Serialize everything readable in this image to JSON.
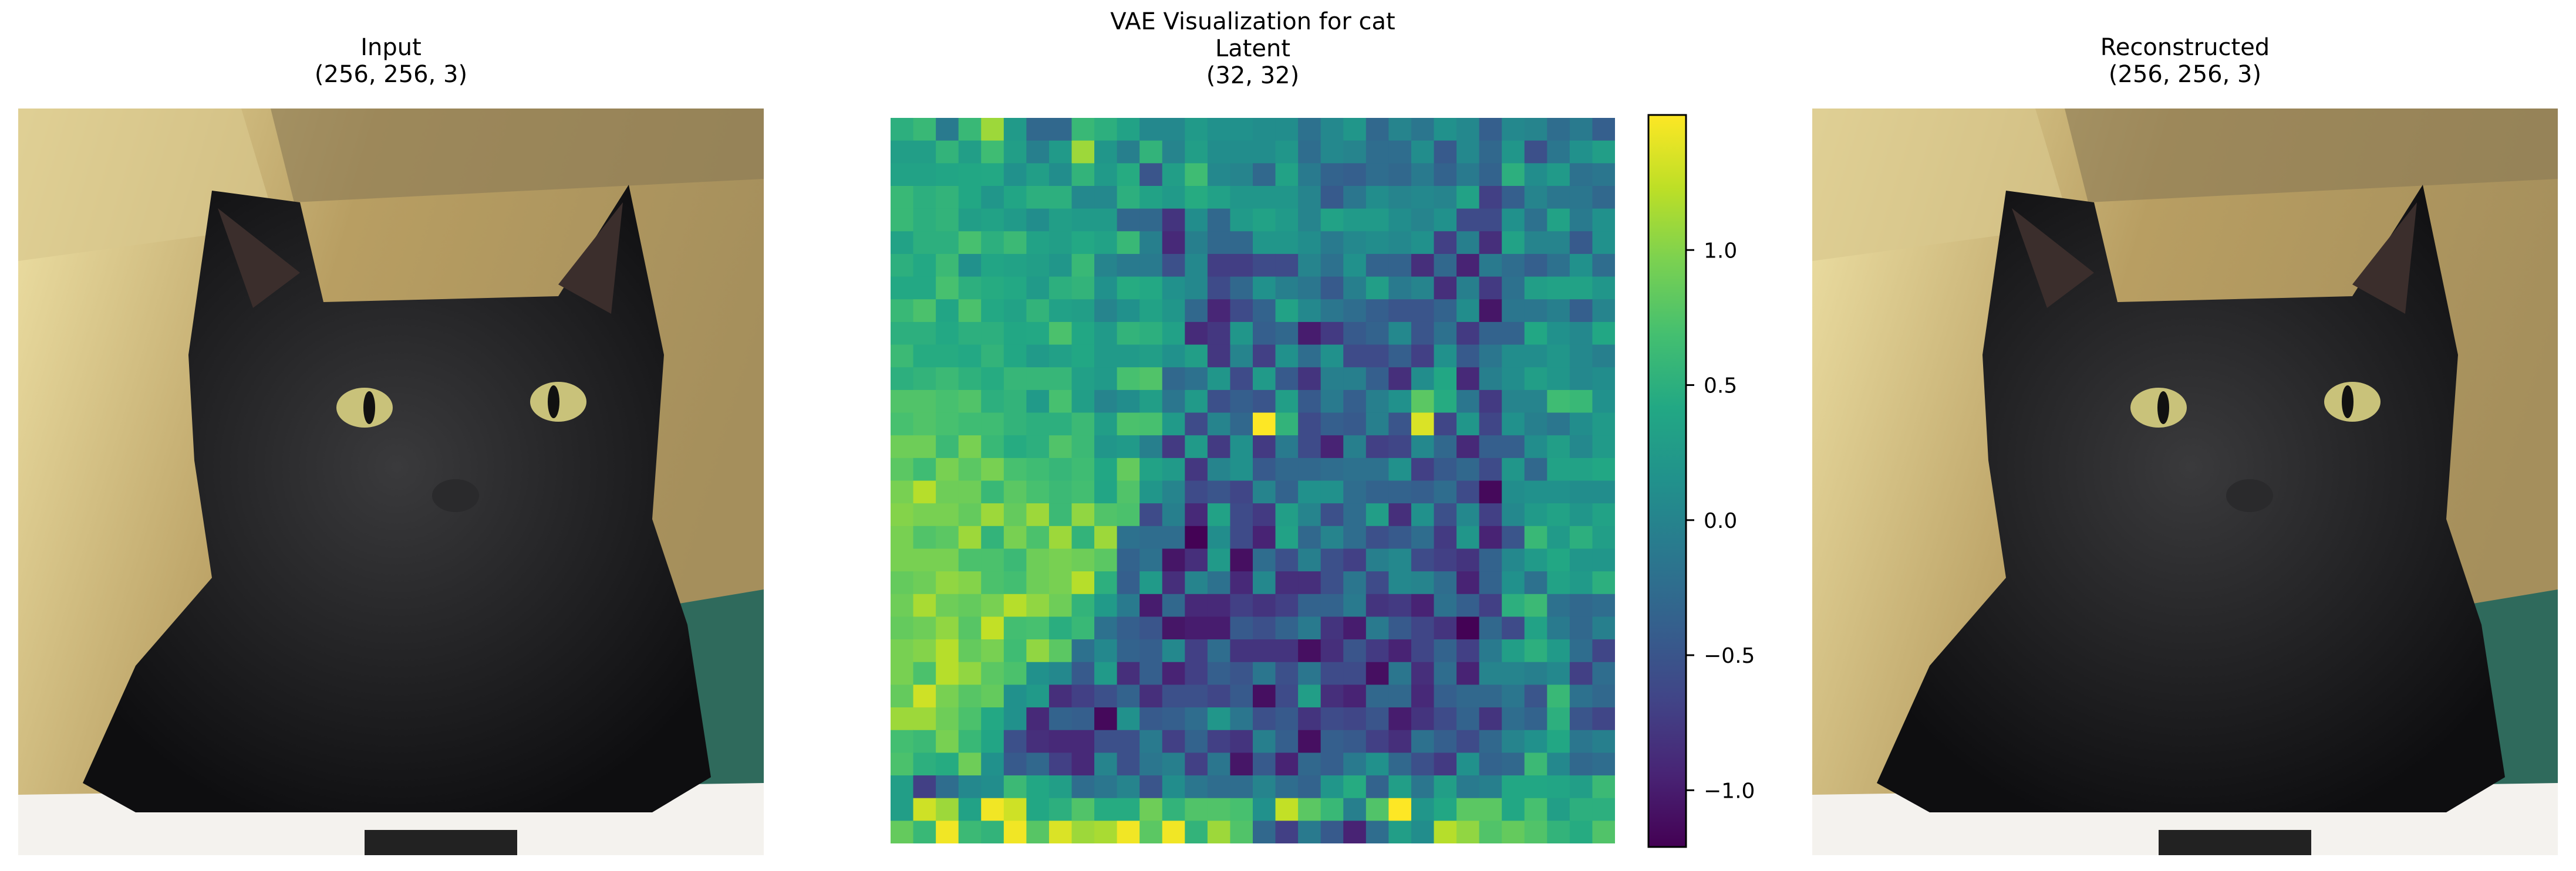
{
  "panels": {
    "input": {
      "title": "Input",
      "shape": "(256, 256, 3)"
    },
    "latent": {
      "suptitle": "VAE Visualization for cat",
      "title": "Latent",
      "shape": "(32, 32)"
    },
    "reconstructed": {
      "title": "Reconstructed",
      "shape": "(256, 256, 3)"
    }
  },
  "chart_data": {
    "type": "heatmap",
    "title": "Latent",
    "colormap": "viridis",
    "vmin": -1.21,
    "vmax": 1.5,
    "colorbar_ticks": [
      -1.0,
      -0.5,
      0.0,
      0.5,
      1.0
    ],
    "colorbar_tick_labels": [
      "−1.0",
      "−0.5",
      "0.0",
      "0.5",
      "1.0"
    ],
    "axes_visible": false,
    "values": [
      [
        0.5,
        0.6,
        -0.1,
        0.6,
        1.1,
        0.25,
        -0.3,
        -0.3,
        0.6,
        0.5,
        0.35,
        0.05,
        0.05,
        0.25,
        0.15,
        0.15,
        0.1,
        0.1,
        -0.2,
        0.05,
        0.2,
        -0.3,
        0.0,
        -0.15,
        0.15,
        0.05,
        -0.4,
        0.05,
        0.0,
        -0.25,
        -0.1,
        -0.4
      ],
      [
        0.3,
        0.3,
        0.55,
        0.3,
        0.65,
        0.3,
        -0.05,
        0.25,
        1.1,
        0.2,
        -0.05,
        0.55,
        0.0,
        0.3,
        0.1,
        0.1,
        0.1,
        0.2,
        -0.25,
        0.05,
        0.0,
        -0.25,
        -0.25,
        0.1,
        -0.45,
        0.05,
        -0.3,
        0.2,
        -0.55,
        -0.15,
        0.15,
        0.3
      ],
      [
        0.35,
        0.35,
        0.38,
        0.4,
        0.42,
        0.15,
        0.3,
        0.1,
        0.55,
        0.25,
        0.45,
        -0.5,
        0.3,
        0.65,
        0.05,
        0.0,
        -0.3,
        0.35,
        -0.1,
        -0.35,
        -0.4,
        -0.25,
        -0.3,
        -0.1,
        -0.35,
        -0.1,
        -0.35,
        0.5,
        0.1,
        0.25,
        -0.2,
        -0.15
      ],
      [
        0.6,
        0.5,
        0.55,
        0.4,
        0.2,
        0.38,
        0.5,
        0.5,
        0.05,
        0.05,
        0.5,
        0.35,
        0.25,
        0.45,
        0.33,
        0.2,
        0.2,
        0.2,
        0.0,
        -0.45,
        -0.15,
        0.1,
        0.0,
        0.05,
        0.0,
        0.35,
        -0.7,
        -0.4,
        0.0,
        -0.15,
        -0.15,
        -0.3
      ],
      [
        0.6,
        0.5,
        0.55,
        0.3,
        0.35,
        0.25,
        0.1,
        0.3,
        0.25,
        0.25,
        -0.3,
        -0.3,
        -0.8,
        0.1,
        -0.3,
        0.25,
        0.35,
        0.25,
        0.0,
        0.35,
        0.25,
        0.25,
        0.1,
        0.0,
        0.15,
        -0.6,
        -0.6,
        0.15,
        -0.2,
        0.35,
        -0.1,
        0.15
      ],
      [
        0.35,
        0.5,
        0.5,
        0.7,
        0.5,
        0.62,
        0.35,
        0.3,
        0.42,
        0.35,
        0.6,
        -0.05,
        -0.9,
        -0.05,
        -0.3,
        -0.3,
        0.2,
        0.2,
        0.1,
        -0.1,
        0.05,
        0.1,
        0.05,
        0.15,
        -0.7,
        -0.05,
        -0.85,
        0.35,
        0.0,
        0.0,
        -0.45,
        0.15
      ],
      [
        0.5,
        0.42,
        0.62,
        0.15,
        0.38,
        0.35,
        0.3,
        0.2,
        0.6,
        0.0,
        -0.1,
        -0.1,
        -0.55,
        0.05,
        -0.72,
        -0.72,
        -0.6,
        -0.6,
        0.0,
        -0.2,
        0.15,
        -0.35,
        -0.35,
        -0.85,
        -0.3,
        -0.95,
        -0.1,
        -0.25,
        -0.4,
        -0.2,
        0.15,
        -0.25
      ],
      [
        0.42,
        0.42,
        0.7,
        0.5,
        0.45,
        0.42,
        0.25,
        0.5,
        0.55,
        0.15,
        0.45,
        0.42,
        0.15,
        0.05,
        -0.6,
        -0.3,
        0.15,
        -0.05,
        -0.15,
        -0.45,
        -0.05,
        0.3,
        -0.1,
        0.0,
        -0.85,
        -0.05,
        -0.75,
        -0.2,
        0.3,
        0.35,
        0.35,
        0.2
      ],
      [
        0.6,
        0.72,
        0.38,
        0.72,
        0.42,
        0.35,
        0.55,
        0.33,
        0.3,
        0.0,
        0.15,
        0.35,
        0.2,
        -0.3,
        -0.92,
        -0.6,
        -0.35,
        0.35,
        0.05,
        -0.15,
        -0.25,
        -0.4,
        -0.5,
        -0.5,
        -0.35,
        0.1,
        -1.05,
        -0.15,
        -0.15,
        -0.05,
        -0.4,
        0.0
      ],
      [
        0.5,
        0.5,
        0.42,
        0.5,
        0.5,
        0.4,
        0.42,
        0.72,
        0.4,
        0.25,
        0.55,
        0.5,
        0.33,
        -0.88,
        -0.78,
        0.2,
        -0.4,
        -0.3,
        -1.0,
        -0.75,
        -0.45,
        -0.35,
        0.05,
        -0.5,
        -0.2,
        -0.75,
        -0.35,
        -0.35,
        0.4,
        0.15,
        0.05,
        0.4
      ],
      [
        0.62,
        0.45,
        0.45,
        0.42,
        0.55,
        0.4,
        0.25,
        0.32,
        0.4,
        0.25,
        0.25,
        0.3,
        0.15,
        0.3,
        -0.78,
        0.0,
        -0.7,
        0.15,
        -0.25,
        0.15,
        -0.6,
        -0.6,
        -0.4,
        -0.7,
        0.15,
        -0.45,
        -0.15,
        0.1,
        0.1,
        0.2,
        0.05,
        -0.05
      ],
      [
        0.5,
        0.55,
        0.62,
        0.52,
        0.45,
        0.58,
        0.58,
        0.58,
        0.32,
        0.25,
        0.7,
        0.75,
        -0.3,
        -0.2,
        0.2,
        -0.6,
        0.25,
        -0.45,
        -0.8,
        -0.05,
        -0.05,
        -0.4,
        -0.85,
        0.1,
        0.4,
        -0.9,
        -0.05,
        0.1,
        0.3,
        0.2,
        0.05,
        0.1
      ],
      [
        0.75,
        0.75,
        0.7,
        0.75,
        0.5,
        0.55,
        0.25,
        0.7,
        0.3,
        0.0,
        0.1,
        0.3,
        -0.15,
        0.25,
        -0.55,
        -0.4,
        -0.5,
        0.3,
        -0.45,
        -0.1,
        -0.4,
        -0.05,
        0.15,
        0.8,
        0.45,
        -0.15,
        -0.75,
        0.0,
        0.0,
        0.65,
        0.6,
        0.15
      ],
      [
        0.7,
        0.75,
        0.7,
        0.65,
        0.65,
        0.55,
        0.5,
        0.5,
        0.62,
        0.3,
        0.72,
        0.7,
        0.25,
        -0.6,
        0.0,
        -0.3,
        1.5,
        0.55,
        -0.6,
        -0.4,
        -0.45,
        -0.05,
        -0.5,
        1.35,
        -0.65,
        0.2,
        -0.65,
        0.15,
        -0.05,
        -0.15,
        0.1,
        0.25
      ],
      [
        0.9,
        0.9,
        0.62,
        0.95,
        0.6,
        0.45,
        0.5,
        0.75,
        0.62,
        0.2,
        0.25,
        -0.05,
        -0.75,
        0.25,
        -0.75,
        0.15,
        -0.75,
        -0.1,
        -0.6,
        -0.95,
        -0.05,
        -0.7,
        -0.65,
        0.05,
        -0.3,
        -0.9,
        -0.4,
        -0.4,
        0.1,
        0.3,
        0.05,
        0.25
      ],
      [
        0.8,
        0.65,
        0.95,
        0.8,
        0.95,
        0.7,
        0.65,
        0.58,
        0.65,
        0.4,
        0.85,
        0.35,
        0.25,
        -0.78,
        0.0,
        0.15,
        -0.45,
        -0.3,
        -0.3,
        -0.25,
        -0.2,
        -0.2,
        0.15,
        -0.7,
        -0.45,
        -0.3,
        -0.6,
        0.2,
        -0.3,
        0.35,
        0.35,
        0.4
      ],
      [
        0.95,
        1.2,
        0.9,
        0.9,
        0.6,
        0.8,
        0.7,
        0.62,
        0.68,
        0.38,
        0.75,
        0.2,
        0.0,
        -0.6,
        -0.5,
        -0.65,
        0.0,
        -0.35,
        0.15,
        0.15,
        -0.25,
        -0.35,
        -0.35,
        -0.4,
        -0.25,
        -0.6,
        -1.15,
        0.1,
        0.15,
        0.15,
        0.1,
        0.1
      ],
      [
        1.0,
        0.95,
        0.95,
        0.85,
        1.1,
        0.85,
        1.1,
        0.62,
        1.05,
        0.75,
        0.72,
        -0.6,
        -0.05,
        -0.9,
        0.35,
        -0.6,
        -0.75,
        0.3,
        0.0,
        -0.55,
        -0.25,
        0.3,
        -0.85,
        0.15,
        -0.55,
        0.05,
        -0.7,
        0.05,
        0.25,
        0.35,
        0.2,
        0.35
      ],
      [
        0.95,
        0.75,
        0.8,
        1.1,
        0.55,
        0.95,
        0.72,
        1.1,
        0.55,
        1.1,
        -0.2,
        -0.25,
        -0.25,
        -1.2,
        0.1,
        -0.6,
        -0.95,
        0.35,
        -0.3,
        0.0,
        -0.25,
        -0.55,
        -0.45,
        -0.25,
        -0.75,
        0.2,
        -0.95,
        -0.5,
        0.6,
        0.25,
        0.5,
        0.3
      ],
      [
        0.95,
        0.95,
        0.95,
        0.72,
        0.72,
        0.62,
        0.9,
        0.95,
        0.9,
        0.8,
        -0.35,
        -0.2,
        -1.05,
        -0.85,
        0.25,
        -1.1,
        -0.25,
        -0.55,
        -0.05,
        -0.55,
        -0.7,
        -0.05,
        0.05,
        -0.6,
        -0.7,
        -0.8,
        -0.35,
        0.05,
        0.25,
        0.4,
        0.2,
        0.2
      ],
      [
        0.85,
        0.9,
        1.05,
        1.0,
        0.72,
        0.68,
        0.9,
        0.95,
        1.2,
        0.5,
        -0.4,
        0.25,
        -0.85,
        0.0,
        -0.2,
        -0.9,
        0.05,
        -0.85,
        -0.85,
        -0.55,
        -0.15,
        -0.6,
        0.05,
        0.0,
        -0.25,
        -0.95,
        -0.35,
        0.15,
        -0.2,
        0.35,
        0.25,
        0.5
      ],
      [
        0.9,
        1.15,
        0.9,
        0.85,
        0.95,
        1.2,
        1.05,
        0.9,
        0.55,
        0.25,
        -0.1,
        -1.0,
        -0.3,
        -0.9,
        -0.9,
        -0.7,
        -0.8,
        -0.7,
        -0.35,
        -0.35,
        -0.1,
        -0.8,
        -0.75,
        -0.95,
        -0.2,
        -0.4,
        -0.7,
        0.5,
        0.62,
        -0.2,
        -0.3,
        -0.25
      ],
      [
        0.85,
        0.9,
        1.05,
        0.78,
        1.25,
        0.68,
        0.7,
        0.48,
        0.6,
        -0.2,
        -0.4,
        -0.5,
        -1.05,
        -1.0,
        -1.0,
        -0.45,
        -0.55,
        -0.35,
        -0.1,
        -0.8,
        -1.0,
        -0.1,
        -0.45,
        -0.65,
        -0.8,
        -1.2,
        -0.3,
        -0.6,
        0.35,
        -0.1,
        -0.3,
        -0.05
      ],
      [
        0.95,
        1.0,
        1.2,
        0.85,
        0.95,
        0.65,
        1.05,
        0.8,
        -0.2,
        0.05,
        -0.35,
        -0.4,
        0.05,
        -0.7,
        -0.25,
        -0.8,
        -0.8,
        -0.8,
        -1.1,
        -0.85,
        -0.5,
        -0.75,
        -0.95,
        -0.65,
        -0.35,
        -0.7,
        -0.1,
        0.3,
        0.5,
        0.25,
        -0.25,
        -0.65
      ],
      [
        0.95,
        0.72,
        1.2,
        1.05,
        0.8,
        0.72,
        0.15,
        0.05,
        -0.45,
        0.25,
        -0.85,
        -0.4,
        -0.95,
        -0.7,
        -0.4,
        -0.5,
        -0.15,
        -0.55,
        -0.15,
        -0.6,
        -0.6,
        -1.1,
        -0.15,
        -0.85,
        -0.25,
        -0.95,
        0.0,
        0.0,
        -0.05,
        0.05,
        -0.7,
        -0.25
      ],
      [
        0.85,
        1.3,
        0.95,
        0.78,
        0.85,
        0.15,
        0.25,
        -0.85,
        -0.7,
        -0.55,
        -0.35,
        -0.85,
        -0.55,
        -0.55,
        -0.65,
        -0.45,
        -1.1,
        -0.6,
        0.3,
        -0.85,
        -0.95,
        -0.3,
        -0.3,
        -0.9,
        -0.4,
        -0.3,
        -0.3,
        -0.15,
        -0.5,
        0.6,
        -0.2,
        -0.3
      ],
      [
        1.1,
        1.1,
        0.9,
        0.72,
        0.42,
        0.15,
        -0.9,
        -0.35,
        -0.4,
        -1.15,
        0.15,
        -0.45,
        -0.4,
        -0.25,
        0.2,
        -0.15,
        -0.55,
        -0.45,
        -0.8,
        -0.6,
        -0.65,
        -0.5,
        -1.0,
        -0.8,
        -0.6,
        -0.35,
        -0.8,
        -0.25,
        -0.35,
        0.5,
        -0.5,
        -0.65
      ],
      [
        0.68,
        0.62,
        0.95,
        0.6,
        0.38,
        -0.55,
        -0.85,
        -0.9,
        -0.9,
        -0.55,
        -0.55,
        -0.1,
        -0.7,
        -0.35,
        -0.7,
        -0.8,
        -0.05,
        -0.4,
        -1.1,
        -0.4,
        -0.45,
        -0.7,
        -0.85,
        -0.2,
        -0.4,
        -0.6,
        -0.3,
        0.0,
        0.15,
        0.4,
        -0.15,
        -0.05
      ],
      [
        0.72,
        0.5,
        0.45,
        0.9,
        0.15,
        -0.45,
        -0.3,
        -0.7,
        -0.9,
        0.0,
        -0.55,
        -0.15,
        -0.05,
        -0.7,
        -0.15,
        -1.05,
        -0.45,
        -0.95,
        -0.3,
        -0.4,
        -0.1,
        0.15,
        -0.3,
        -0.55,
        -0.75,
        0.15,
        -0.35,
        -0.3,
        0.62,
        0.05,
        -0.3,
        -0.25
      ],
      [
        0.3,
        -0.7,
        -0.25,
        0.05,
        0.1,
        0.62,
        0.4,
        0.3,
        -0.25,
        -0.15,
        0.0,
        -0.5,
        0.1,
        -0.15,
        -0.25,
        -0.25,
        0.0,
        -0.25,
        -0.35,
        0.2,
        0.45,
        -0.35,
        0.3,
        -0.15,
        0.3,
        -0.1,
        -0.05,
        0.4,
        0.4,
        0.38,
        0.3,
        0.62
      ],
      [
        0.3,
        1.3,
        1.1,
        0.35,
        1.45,
        1.3,
        0.4,
        0.5,
        0.75,
        0.45,
        0.45,
        0.9,
        0.55,
        0.75,
        0.75,
        0.7,
        0.15,
        1.25,
        0.8,
        0.6,
        -0.05,
        0.75,
        1.5,
        0.2,
        0.4,
        0.8,
        0.8,
        0.4,
        0.7,
        0.3,
        0.5,
        0.5
      ],
      [
        0.85,
        0.6,
        1.45,
        0.62,
        0.55,
        1.45,
        0.78,
        1.35,
        1.1,
        1.15,
        1.45,
        0.8,
        1.45,
        0.55,
        1.1,
        0.75,
        -0.3,
        -0.7,
        -0.1,
        -0.45,
        -0.95,
        -0.25,
        0.3,
        0.1,
        1.2,
        1.05,
        0.75,
        0.85,
        0.75,
        0.55,
        0.45,
        0.75
      ]
    ]
  }
}
